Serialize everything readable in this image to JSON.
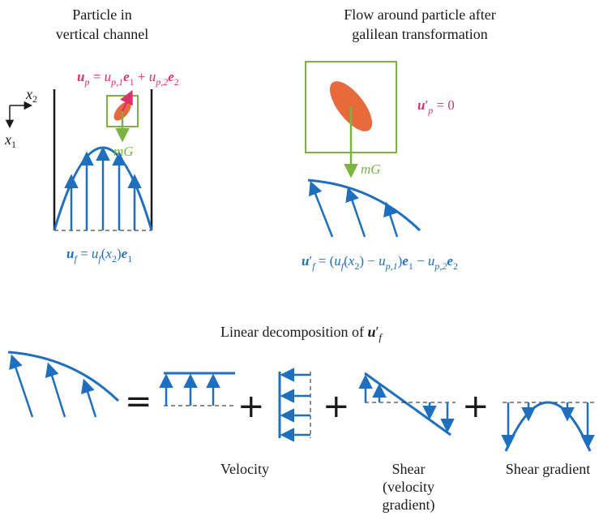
{
  "panels": {
    "channel": {
      "title_line1": "Particle in",
      "title_line2": "vertical channel",
      "axis_x1": "x",
      "axis_x1_sub": "1",
      "axis_x2": "x",
      "axis_x2_sub": "2",
      "particle_velocity": {
        "u": "u",
        "p": "p",
        "eq": " = ",
        "term1_u": "u",
        "term1_sub": "p,1",
        "e1": "e",
        "e1_sub": "1",
        "plus": " + ",
        "term2_u": "u",
        "term2_sub": "p,2",
        "e2": "e",
        "e2_sub": "2"
      },
      "gravity": "mG",
      "fluid_velocity": {
        "u": "u",
        "f": "f",
        "eq": " = ",
        "uf": "u",
        "uf_sub": "f",
        "arg_open": "(",
        "x": "x",
        "x_sub": "2",
        "arg_close": ")",
        "e": "e",
        "e_sub": "1"
      }
    },
    "galilean": {
      "title_line1": "Flow around particle after",
      "title_line2": "galilean transformation",
      "particle_velocity": {
        "u": "u",
        "prime": "′",
        "p": "p",
        "eq": " = 0"
      },
      "gravity": "mG",
      "fluid_velocity": {
        "u": "u",
        "prime": "′",
        "f": "f",
        "eq": " = (",
        "uf": "u",
        "uf_sub": "f",
        "x_open": "(",
        "x": "x",
        "x_sub": "2",
        "x_close": ") − ",
        "up1": "u",
        "up1_sub": "p,1",
        "close": ")",
        "e1": "e",
        "e1_sub": "1",
        "minus": " − ",
        "up2": "u",
        "up2_sub": "p,2",
        "e2": "e",
        "e2_sub": "2"
      }
    },
    "decomposition": {
      "title_prefix": "Linear decomposition of ",
      "title_u": "u",
      "title_prime": "′",
      "title_f": "f",
      "equals": "=",
      "plus": "+",
      "labels": {
        "velocity": "Velocity",
        "shear_line1": "Shear",
        "shear_line2": "(velocity",
        "shear_line3": "gradient)",
        "shear_gradient": "Shear gradient"
      }
    }
  },
  "colors": {
    "blue": "#1f6fbf",
    "green": "#7cb342",
    "pink": "#e0306b",
    "orange": "#e8693a",
    "black": "#1a1a1a"
  }
}
